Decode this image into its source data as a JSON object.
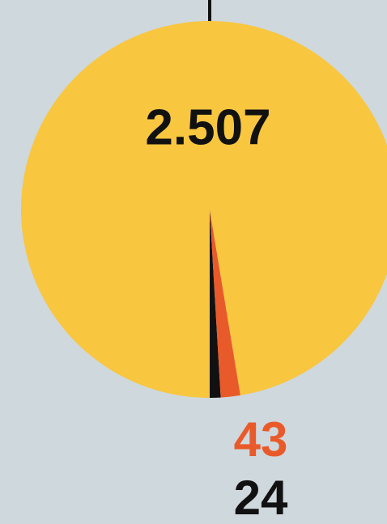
{
  "chart_data": {
    "type": "pie",
    "values": [
      2507,
      43,
      24
    ],
    "value_labels": [
      "2.507",
      "43",
      "24"
    ],
    "colors": [
      "#f8c63f",
      "#e95a2a",
      "#111111"
    ]
  }
}
